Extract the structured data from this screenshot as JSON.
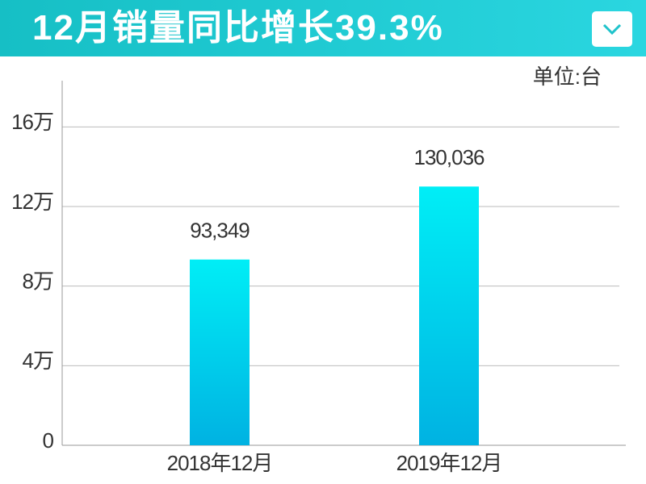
{
  "chart_data": {
    "type": "bar",
    "title": "12月销量同比增长39.3%",
    "unit_label": "单位:台",
    "categories": [
      "2018年12月",
      "2019年12月"
    ],
    "values": [
      93349,
      130036
    ],
    "value_labels": [
      "93,349",
      "130,036"
    ],
    "gradient": [
      "#00eef6",
      "#00b2e2"
    ],
    "ylim": [
      0,
      180000
    ],
    "yticks": [
      0,
      {
        "value": 40000,
        "label": "4万"
      },
      {
        "value": 80000,
        "label": "8万"
      },
      {
        "value": 120000,
        "label": "12万"
      },
      {
        "value": 160000,
        "label": "16万"
      }
    ],
    "grid": true
  }
}
